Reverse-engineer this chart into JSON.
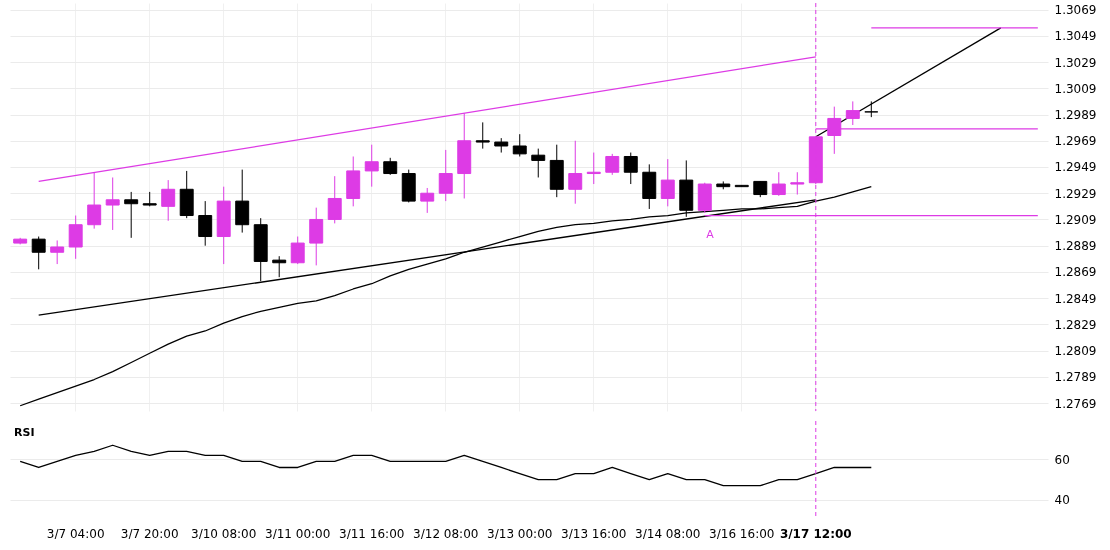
{
  "chart_data": [
    {
      "type": "candlestick",
      "categories": [
        null,
        null,
        null,
        "3/7 04:00",
        null,
        null,
        null,
        "3/7 20:00",
        null,
        null,
        null,
        "3/10 08:00",
        null,
        null,
        null,
        "3/11 00:00",
        null,
        null,
        null,
        "3/11 16:00",
        null,
        null,
        null,
        "3/12 08:00",
        null,
        null,
        null,
        "3/13 00:00",
        null,
        null,
        null,
        "3/13 16:00",
        null,
        null,
        null,
        "3/14 08:00",
        null,
        null,
        null,
        "3/16 16:00",
        null,
        null,
        null,
        "3/17 12:00",
        null,
        null,
        null,
        null,
        null,
        null,
        null,
        null,
        null,
        null,
        null,
        null
      ],
      "ohlc": [
        [
          1.2891,
          1.2895,
          1.289,
          1.2894
        ],
        [
          1.2894,
          1.2896,
          1.2871,
          1.2884
        ],
        [
          1.2884,
          1.2893,
          1.2875,
          1.2888
        ],
        [
          1.2888,
          1.2912,
          1.2879,
          1.2905
        ],
        [
          1.2905,
          1.2945,
          1.2902,
          1.292
        ],
        [
          1.292,
          1.2941,
          1.2901,
          1.2924
        ],
        [
          1.2924,
          1.293,
          1.2895,
          1.2921
        ],
        [
          1.2921,
          1.293,
          1.2919,
          1.292
        ],
        [
          1.2919,
          1.2939,
          1.2908,
          1.2932
        ],
        [
          1.2932,
          1.2946,
          1.291,
          1.2912
        ],
        [
          1.2912,
          1.2923,
          1.2889,
          1.2896
        ],
        [
          1.2896,
          1.2934,
          1.2875,
          1.2923
        ],
        [
          1.2923,
          1.2947,
          1.2899,
          1.2905
        ],
        [
          1.2905,
          1.291,
          1.2862,
          1.2877
        ],
        [
          1.2878,
          1.2881,
          1.2865,
          1.2876
        ],
        [
          1.2876,
          1.2896,
          1.2875,
          1.2891
        ],
        [
          1.2891,
          1.2918,
          1.2874,
          1.2909
        ],
        [
          1.2909,
          1.2942,
          1.2906,
          1.2925
        ],
        [
          1.2925,
          1.2957,
          1.2919,
          1.2946
        ],
        [
          1.2946,
          1.2966,
          1.2934,
          1.2953
        ],
        [
          1.2953,
          1.2956,
          1.2943,
          1.2944
        ],
        [
          1.2944,
          1.2947,
          1.2922,
          1.2923
        ],
        [
          1.2923,
          1.2933,
          1.2914,
          1.2929
        ],
        [
          1.2929,
          1.2962,
          1.2923,
          1.2944
        ],
        [
          1.2944,
          1.299,
          1.2925,
          1.2969
        ],
        [
          1.2969,
          1.2983,
          1.2963,
          1.2968
        ],
        [
          1.2968,
          1.2971,
          1.296,
          1.2965
        ],
        [
          1.2965,
          1.2974,
          1.2957,
          1.2959
        ],
        [
          1.2958,
          1.2963,
          1.2941,
          1.2954
        ],
        [
          1.2954,
          1.2966,
          1.2926,
          1.2932
        ],
        [
          1.2932,
          1.2969,
          1.2921,
          1.2944
        ],
        [
          1.2944,
          1.296,
          1.2936,
          1.2945
        ],
        [
          1.2945,
          1.2959,
          1.2943,
          1.2957
        ],
        [
          1.2957,
          1.296,
          1.2936,
          1.2945
        ],
        [
          1.2945,
          1.2951,
          1.2917,
          1.2925
        ],
        [
          1.2925,
          1.2955,
          1.2919,
          1.2939
        ],
        [
          1.2939,
          1.2954,
          1.2911,
          1.2916
        ],
        [
          1.2916,
          1.2937,
          1.2914,
          1.2936
        ],
        [
          1.2936,
          1.2938,
          1.2932,
          1.2934
        ],
        [
          1.2935,
          1.2935,
          1.2934,
          1.2934
        ],
        [
          1.2938,
          1.2938,
          1.2926,
          1.2928
        ],
        [
          1.2928,
          1.2945,
          1.2927,
          1.2936
        ],
        [
          1.2936,
          1.2945,
          1.2928,
          1.2937
        ],
        [
          1.2937,
          1.2972,
          1.2936,
          1.2972
        ],
        [
          1.2973,
          1.2995,
          1.2959,
          1.2986
        ],
        [
          1.2986,
          1.2999,
          1.2981,
          1.2992
        ],
        [
          1.2991,
          1.2999,
          1.2987,
          1.2991
        ],
        null,
        null,
        null,
        null,
        null,
        null,
        null,
        null,
        null
      ],
      "colors": [
        "#dd3be5",
        "#000000",
        "#dd3be5",
        "#dd3be5",
        "#dd3be5",
        "#dd3be5",
        "#000000",
        "#000000",
        "#dd3be5",
        "#000000",
        "#000000",
        "#dd3be5",
        "#000000",
        "#000000",
        "#000000",
        "#dd3be5",
        "#dd3be5",
        "#dd3be5",
        "#dd3be5",
        "#dd3be5",
        "#000000",
        "#000000",
        "#dd3be5",
        "#dd3be5",
        "#dd3be5",
        "#000000",
        "#000000",
        "#000000",
        "#000000",
        "#000000",
        "#dd3be5",
        "#dd3be5",
        "#dd3be5",
        "#000000",
        "#000000",
        "#dd3be5",
        "#000000",
        "#dd3be5",
        "#000000",
        "#000000",
        "#000000",
        "#dd3be5",
        "#dd3be5",
        "#dd3be5",
        "#dd3be5",
        "#dd3be5",
        "#000000",
        null,
        null,
        null,
        null,
        null,
        null,
        null,
        null,
        null
      ],
      "series": [
        {
          "type": "line",
          "color": "#000000",
          "values": [
            1.2767,
            1.2772,
            1.2777,
            1.2782,
            1.2787,
            1.2793,
            1.28,
            1.2807,
            1.2814,
            1.282,
            1.2824,
            1.283,
            1.2835,
            1.2839,
            1.2842,
            1.2845,
            1.2847,
            1.2851,
            1.2856,
            1.286,
            1.2866,
            1.2871,
            1.2875,
            1.2879,
            1.2884,
            1.2888,
            1.2892,
            1.2896,
            1.29,
            1.2903,
            1.2905,
            1.2906,
            1.2908,
            1.2909,
            1.2911,
            1.2912,
            1.2914,
            1.2915,
            1.2916,
            1.2917,
            1.2917,
            1.2918,
            1.2919,
            1.2923,
            1.2926,
            1.293,
            1.2934,
            null,
            null,
            null,
            null,
            null,
            null,
            null,
            null,
            null
          ]
        },
        {
          "type": "line",
          "color": "#dd3be5",
          "values": [
            null,
            1.2938,
            null,
            null,
            null,
            null,
            null,
            null,
            null,
            null,
            null,
            null,
            null,
            null,
            null,
            null,
            null,
            null,
            null,
            null,
            null,
            null,
            null,
            null,
            null,
            null,
            null,
            null,
            null,
            null,
            null,
            null,
            null,
            null,
            null,
            null,
            null,
            null,
            null,
            null,
            null,
            null,
            null,
            1.3033,
            null,
            null,
            null,
            null,
            null,
            null,
            null,
            null,
            null,
            null,
            null,
            null
          ]
        },
        {
          "type": "line",
          "color": "#000000",
          "values": [
            null,
            1.2836,
            null,
            null,
            null,
            null,
            null,
            null,
            null,
            null,
            null,
            null,
            null,
            null,
            null,
            null,
            null,
            null,
            null,
            null,
            null,
            null,
            null,
            null,
            null,
            null,
            null,
            null,
            null,
            null,
            null,
            null,
            null,
            null,
            null,
            null,
            null,
            null,
            null,
            null,
            null,
            null,
            null,
            1.2924,
            null,
            null,
            null,
            null,
            null,
            null,
            null,
            null,
            null,
            null,
            null,
            null
          ]
        },
        {
          "type": "line",
          "color": "#000000",
          "values": [
            null,
            null,
            null,
            null,
            null,
            null,
            null,
            null,
            null,
            null,
            null,
            null,
            null,
            null,
            null,
            null,
            null,
            null,
            null,
            null,
            null,
            null,
            null,
            null,
            null,
            null,
            null,
            null,
            null,
            null,
            null,
            null,
            null,
            null,
            null,
            null,
            null,
            null,
            null,
            null,
            null,
            null,
            null,
            1.2972,
            null,
            null,
            null,
            null,
            null,
            null,
            null,
            null,
            null,
            1.3055,
            null,
            null
          ]
        },
        {
          "type": "line",
          "color": "#dd3be5",
          "values": [
            null,
            null,
            null,
            null,
            null,
            null,
            null,
            null,
            null,
            null,
            null,
            null,
            null,
            null,
            null,
            null,
            null,
            null,
            null,
            null,
            null,
            null,
            null,
            null,
            null,
            null,
            null,
            null,
            null,
            null,
            null,
            null,
            null,
            null,
            null,
            null,
            null,
            null,
            null,
            null,
            null,
            null,
            null,
            null,
            null,
            null,
            1.3055,
            null,
            null,
            null,
            null,
            null,
            null,
            null,
            null,
            1.3055
          ]
        },
        {
          "type": "line",
          "color": "#dd3be5",
          "values": [
            null,
            null,
            null,
            null,
            null,
            null,
            null,
            null,
            null,
            null,
            null,
            null,
            null,
            null,
            null,
            null,
            null,
            null,
            null,
            null,
            null,
            null,
            null,
            null,
            null,
            null,
            null,
            null,
            null,
            null,
            null,
            null,
            null,
            null,
            null,
            null,
            null,
            null,
            null,
            null,
            null,
            null,
            null,
            1.2978,
            null,
            null,
            null,
            null,
            null,
            null,
            null,
            null,
            null,
            null,
            null,
            1.2978
          ]
        },
        {
          "type": "line",
          "color": "#dd3be5",
          "values": [
            null,
            null,
            null,
            null,
            null,
            null,
            null,
            null,
            null,
            null,
            null,
            null,
            null,
            null,
            null,
            null,
            null,
            null,
            null,
            null,
            null,
            null,
            null,
            null,
            null,
            null,
            null,
            null,
            null,
            null,
            null,
            null,
            null,
            null,
            null,
            null,
            null,
            1.2912,
            null,
            null,
            null,
            null,
            null,
            null,
            null,
            null,
            null,
            null,
            null,
            null,
            null,
            null,
            null,
            null,
            null,
            1.2912
          ]
        }
      ],
      "ref_lines": [
        {
          "axis": "x",
          "value": "3/17 12:00",
          "color": "#dd3be5",
          "line_style": "dashed"
        }
      ],
      "annotations": [
        "A"
      ],
      "ylim": [
        1.2763,
        1.3074
      ],
      "yticks": [
        1.2769,
        1.2789,
        1.2809,
        1.2829,
        1.2849,
        1.2869,
        1.2889,
        1.2909,
        1.2929,
        1.2949,
        1.2969,
        1.2989,
        1.3009,
        1.3029,
        1.3049,
        1.3069
      ],
      "grid": true,
      "tick_labels": "y"
    },
    {
      "type": "line",
      "title": "RSI",
      "categories": [
        null,
        null,
        null,
        "3/7 04:00",
        null,
        null,
        null,
        "3/7 20:00",
        null,
        null,
        null,
        "3/10 08:00",
        null,
        null,
        null,
        "3/11 00:00",
        null,
        null,
        null,
        "3/11 16:00",
        null,
        null,
        null,
        "3/12 08:00",
        null,
        null,
        null,
        "3/13 00:00",
        null,
        null,
        null,
        "3/13 16:00",
        null,
        null,
        null,
        "3/14 08:00",
        null,
        null,
        null,
        "3/16 16:00",
        null,
        null,
        null,
        "3/17 12:00",
        null,
        null,
        null,
        null,
        null,
        null,
        null,
        null,
        null,
        null,
        null,
        null
      ],
      "series": [
        {
          "color": "#000000",
          "values": [
            59,
            56,
            59,
            62,
            64,
            67,
            64,
            62,
            64,
            64,
            62,
            62,
            59,
            59,
            56,
            56,
            59,
            59,
            62,
            62,
            59,
            59,
            59,
            59,
            62,
            59,
            56,
            53,
            50,
            50,
            53,
            53,
            56,
            53,
            50,
            53,
            50,
            50,
            47,
            47,
            47,
            50,
            50,
            53,
            56,
            56,
            56,
            null,
            null,
            null,
            null,
            null,
            null,
            null,
            null,
            null
          ]
        }
      ],
      "ref_lines": [
        {
          "axis": "x",
          "value": "3/17 12:00",
          "color": "#dd3be5",
          "line_style": "dashed"
        }
      ],
      "ylim": [
        32,
        79
      ],
      "yticks": [
        40,
        60
      ],
      "grid": "y"
    }
  ]
}
